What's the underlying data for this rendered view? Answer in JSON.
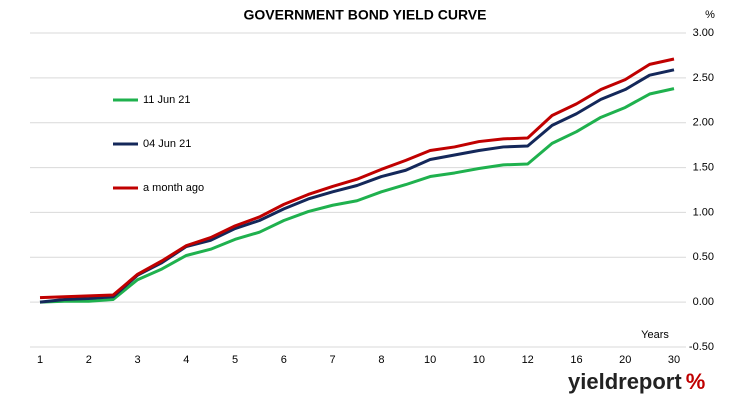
{
  "chart_data": {
    "type": "line",
    "title": "GOVERNMENT BOND YIELD CURVE",
    "x_label": "Years",
    "y_label": "%",
    "brand": {
      "name": "yieldreport",
      "symbol": "%"
    },
    "categories": [
      "1",
      null,
      "2",
      null,
      "3",
      null,
      "4",
      null,
      "5",
      null,
      "6",
      null,
      "7",
      null,
      "8",
      null,
      "10",
      null,
      "10",
      null,
      "12",
      null,
      "16",
      null,
      "20",
      null,
      "30"
    ],
    "series": [
      {
        "name": "11 Jun 21",
        "color": "#1fb14e",
        "values": [
          0.0,
          0.01,
          0.01,
          0.03,
          0.25,
          0.37,
          0.52,
          0.59,
          0.7,
          0.78,
          0.91,
          1.01,
          1.08,
          1.13,
          1.23,
          1.31,
          1.4,
          1.44,
          1.49,
          1.53,
          1.54,
          1.77,
          1.9,
          2.06,
          2.17,
          2.32,
          2.38
        ]
      },
      {
        "name": "04 Jun 21",
        "color": "#14285a",
        "values": [
          0.0,
          0.03,
          0.04,
          0.06,
          0.3,
          0.44,
          0.62,
          0.69,
          0.82,
          0.91,
          1.04,
          1.15,
          1.23,
          1.3,
          1.4,
          1.47,
          1.59,
          1.64,
          1.69,
          1.73,
          1.74,
          1.97,
          2.1,
          2.26,
          2.37,
          2.53,
          2.59
        ]
      },
      {
        "name": "a month ago",
        "color": "#c00000",
        "values": [
          0.05,
          0.06,
          0.07,
          0.08,
          0.31,
          0.46,
          0.63,
          0.72,
          0.85,
          0.95,
          1.09,
          1.2,
          1.29,
          1.37,
          1.48,
          1.58,
          1.69,
          1.73,
          1.79,
          1.82,
          1.83,
          2.08,
          2.21,
          2.37,
          2.48,
          2.65,
          2.71
        ]
      }
    ],
    "ylim": [
      -0.5,
      3.0
    ],
    "yticks": [
      {
        "value": -0.5,
        "label": "-0.50"
      },
      {
        "value": 0,
        "label": "0.00"
      },
      {
        "value": 0.5,
        "label": "0.50"
      },
      {
        "value": 1,
        "label": "1.00"
      },
      {
        "value": 1.5,
        "label": "1.50"
      },
      {
        "value": 2,
        "label": "2.00"
      },
      {
        "value": 2.5,
        "label": "2.50"
      },
      {
        "value": 3,
        "label": "3.00"
      }
    ],
    "grid": true,
    "legend": "upper left"
  }
}
